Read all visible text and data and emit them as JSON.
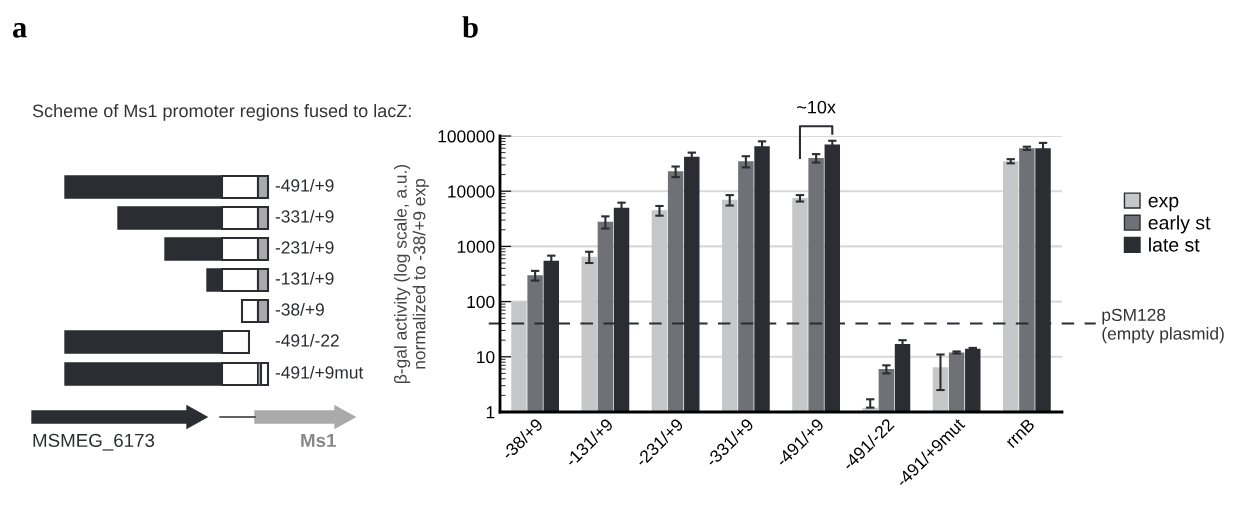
{
  "chart_data": [
    {
      "type": "other",
      "title": "Scheme of Ms1 promoter regions fused to lacZ:",
      "annotations": [
        "a",
        "-491/+9",
        "-331/+9",
        "-231/+9",
        "-131/+9",
        "-38/+9",
        "-491/-22",
        "-491/+9mut",
        "MSMEG_6173",
        "Ms1"
      ]
    },
    {
      "type": "bar",
      "ylabel": "β-gal activity (log scale, a.u.)\nnormalized to -38/+9 exp",
      "categories": [
        "-38/+9",
        "-131/+9",
        "-231/+9",
        "-331/+9",
        "-491/+9",
        "-491/-22",
        "-491/+9mut",
        "rrnB"
      ],
      "series": [
        {
          "name": "exp",
          "color": "#c6c7c9",
          "values": [
            100,
            650,
            4500,
            7000,
            7500,
            1.2,
            6.5,
            35000
          ],
          "errors": [
            null,
            150,
            900,
            1500,
            1000,
            [
              1.2,
              1.7
            ],
            [
              2.5,
              11
            ],
            3000
          ]
        },
        {
          "name": "early st",
          "color": "#6f7176",
          "values": [
            300,
            2800,
            23000,
            35000,
            40000,
            6,
            12,
            60000
          ],
          "errors": [
            60,
            700,
            5000,
            8000,
            7000,
            1,
            0.5,
            4000
          ]
        },
        {
          "name": "late st",
          "color": "#2b2d33",
          "values": [
            550,
            5000,
            42000,
            65000,
            70000,
            17,
            14,
            60000
          ],
          "errors": [
            130,
            1200,
            8000,
            15000,
            12000,
            3,
            0.5,
            15000
          ]
        }
      ],
      "log": "y",
      "ylim": [
        1,
        100000
      ],
      "yticks": [
        1,
        10,
        100,
        1000,
        10000,
        100000
      ],
      "grid": "y",
      "legend": "right",
      "ref_lines": [
        {
          "axis": "y",
          "value": 40,
          "label": "pSM128\n(empty plasmid)",
          "color": "#2b2d33",
          "line_style": "dashed"
        }
      ],
      "annotations": [
        "b",
        "~10x"
      ]
    }
  ]
}
